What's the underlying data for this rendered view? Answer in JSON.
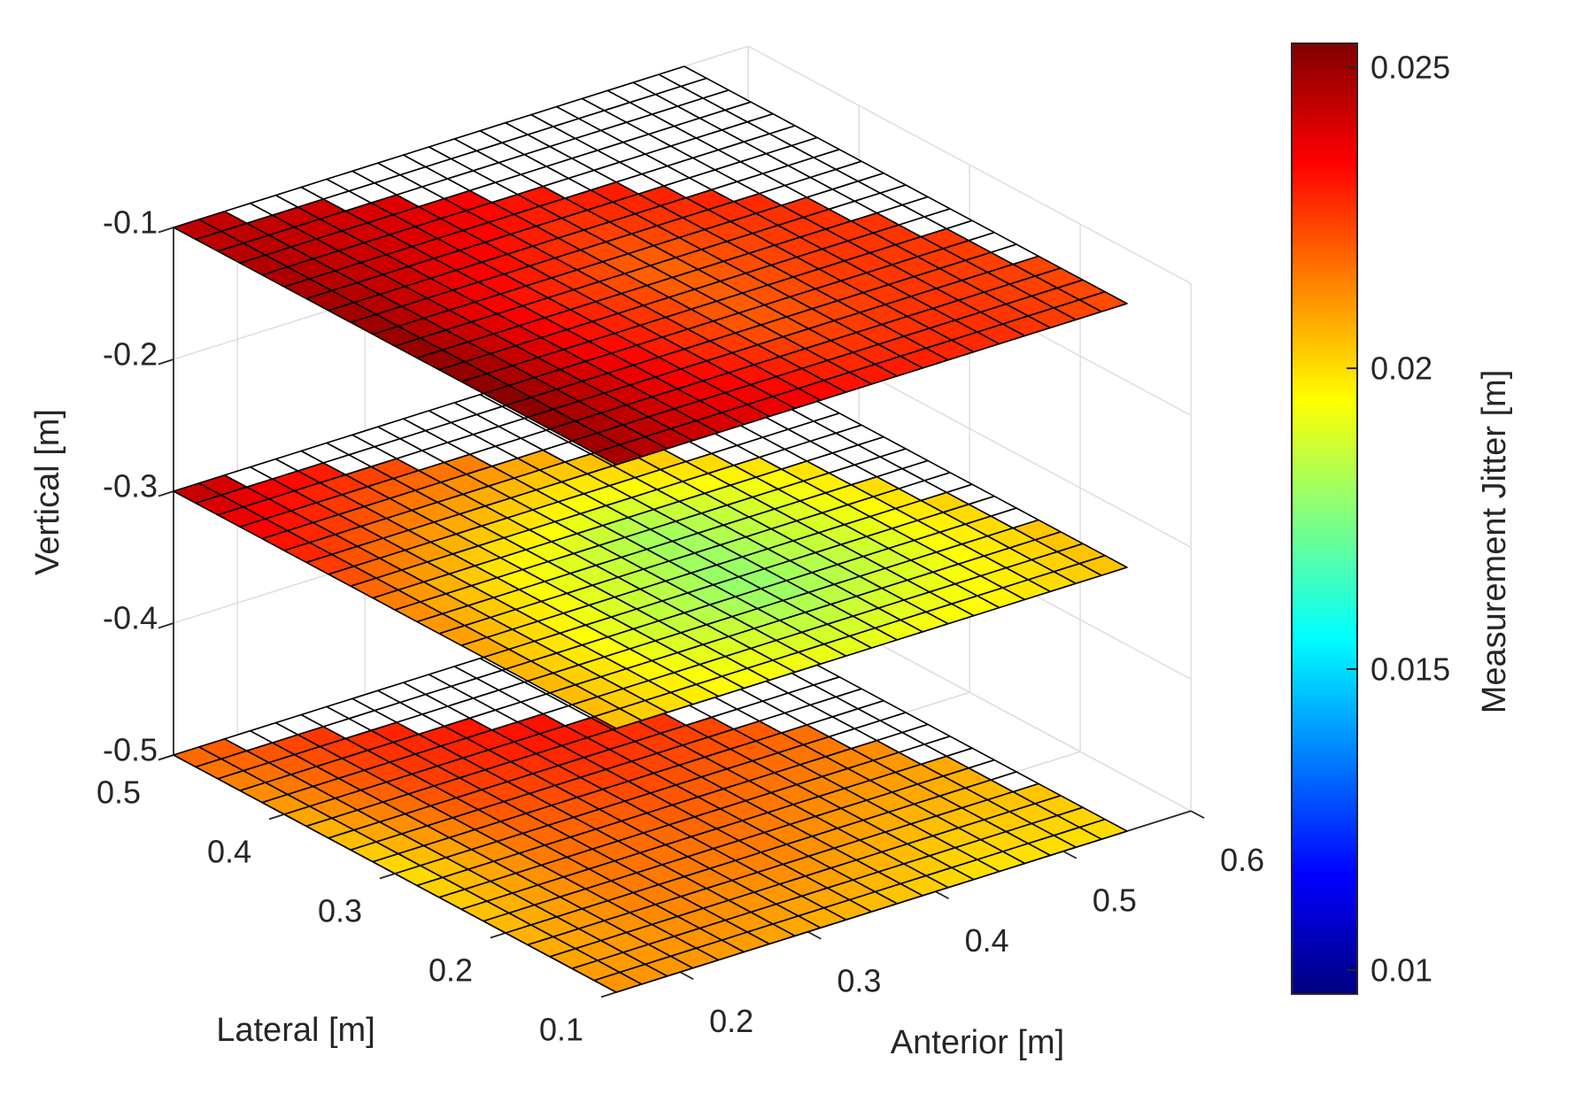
{
  "chart_data": {
    "type": "surface",
    "title": "",
    "xlabel": "Anterior [m]",
    "ylabel": "Lateral [m]",
    "zlabel": "Vertical [m]",
    "colorbar_label": "Measurement Jitter [m]",
    "colormap": "jet",
    "grid": true,
    "xlim": [
      0.15,
      0.6
    ],
    "ylim": [
      0.1,
      0.5
    ],
    "zlim": [
      -0.5,
      -0.1
    ],
    "clim": [
      0.0096,
      0.0254
    ],
    "xticks": [
      0.2,
      0.3,
      0.4,
      0.5,
      0.6
    ],
    "xtick_labels": [
      "0.2",
      "0.3",
      "0.4",
      "0.5",
      "0.6"
    ],
    "yticks": [
      0.1,
      0.2,
      0.3,
      0.4,
      0.5
    ],
    "ytick_labels": [
      "0.1",
      "0.2",
      "0.3",
      "0.4",
      "0.5"
    ],
    "zticks": [
      -0.1,
      -0.2,
      -0.3,
      -0.4,
      -0.5
    ],
    "ztick_labels": [
      "-0.1",
      "-0.2",
      "-0.3",
      "-0.4",
      "-0.5"
    ],
    "colorbar_ticks": [
      0.01,
      0.015,
      0.02,
      0.025
    ],
    "colorbar_tick_labels": [
      "0.01",
      "0.015",
      "0.02",
      "0.025"
    ],
    "mesh": {
      "anterior_range": [
        0.15,
        0.55
      ],
      "lateral_range": [
        0.1,
        0.5
      ],
      "step": 0.02,
      "valid_anterior_cells_per_lateral_row": [
        20,
        20,
        20,
        20,
        19,
        19,
        19,
        18,
        18,
        17,
        17,
        16,
        15,
        14,
        13,
        11,
        9,
        7,
        5,
        2
      ]
    },
    "sample_lateral": [
      0.1,
      0.2,
      0.3,
      0.4,
      0.5
    ],
    "sample_anterior": [
      0.15,
      0.25,
      0.35,
      0.45,
      0.55
    ],
    "slices": [
      {
        "z": -0.5,
        "values": [
          [
            0.0212,
            0.021,
            0.0205,
            0.0198,
            0.02
          ],
          [
            0.0205,
            0.0215,
            0.0215,
            0.0208,
            0.0205
          ],
          [
            0.0198,
            0.0218,
            0.0222,
            0.0218,
            0.0212
          ],
          [
            0.0208,
            0.0225,
            0.0232,
            0.0228,
            0.0218
          ],
          [
            0.0218,
            0.0228,
            0.0235,
            0.0232,
            0.0225
          ]
        ]
      },
      {
        "z": -0.3,
        "values": [
          [
            0.0205,
            0.0195,
            0.0192,
            0.0196,
            0.0205
          ],
          [
            0.0208,
            0.0188,
            0.0177,
            0.0188,
            0.0205
          ],
          [
            0.0215,
            0.0195,
            0.018,
            0.0192,
            0.021
          ],
          [
            0.0232,
            0.0215,
            0.0205,
            0.021,
            0.0218
          ],
          [
            0.0245,
            0.0235,
            0.0228,
            0.0225,
            0.0222
          ]
        ]
      },
      {
        "z": -0.1,
        "values": [
          [
            0.0248,
            0.024,
            0.0232,
            0.0228,
            0.0222
          ],
          [
            0.0254,
            0.0235,
            0.022,
            0.0226,
            0.0224
          ],
          [
            0.0252,
            0.0232,
            0.0218,
            0.0226,
            0.0228
          ],
          [
            0.0248,
            0.024,
            0.023,
            0.0232,
            0.0232
          ],
          [
            0.0244,
            0.0242,
            0.0238,
            0.0236,
            0.0235
          ]
        ]
      }
    ]
  }
}
